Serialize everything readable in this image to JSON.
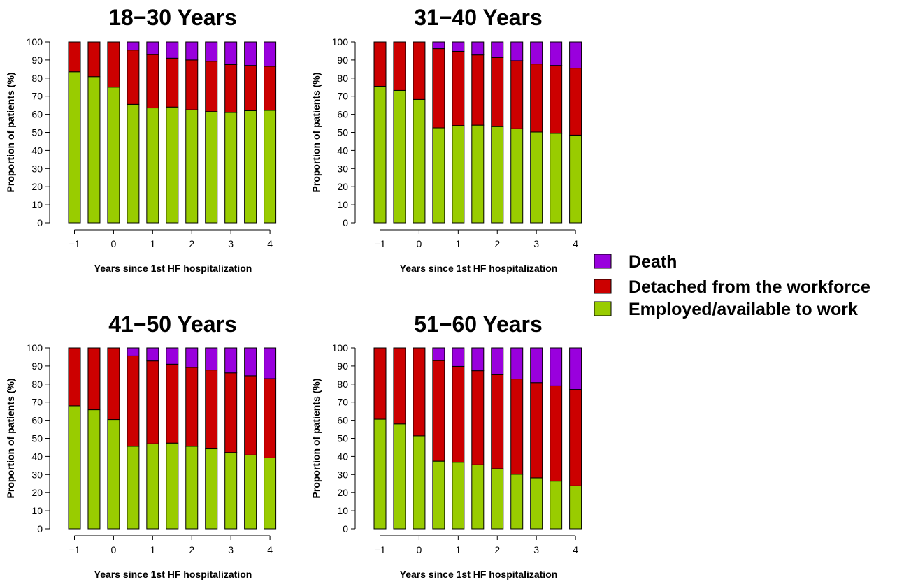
{
  "colors": {
    "death": "#9900dd",
    "detached": "#cc0000",
    "employed": "#99cc00"
  },
  "legend": {
    "items": [
      {
        "label": "Death",
        "color_key": "death"
      },
      {
        "label": "Detached from the workforce",
        "color_key": "detached"
      },
      {
        "label": "Employed/available to work",
        "color_key": "employed"
      }
    ]
  },
  "chart_data": [
    {
      "type": "bar",
      "stacked": true,
      "title": "18−30 Years",
      "xlabel": "Years since 1st HF hospitalization",
      "ylabel": "Proportion of patients (%)",
      "ylim": [
        0,
        100
      ],
      "yticks": [
        0,
        10,
        20,
        30,
        40,
        50,
        60,
        70,
        80,
        90,
        100
      ],
      "categories": [
        -1,
        -0.5,
        0,
        0.5,
        1,
        1.5,
        2,
        2.5,
        3,
        3.5,
        4
      ],
      "xtick_labels": [
        "−1",
        "0",
        "1",
        "2",
        "3",
        "4"
      ],
      "xtick_values": [
        -1,
        0,
        1,
        2,
        3,
        4
      ],
      "grid": false,
      "legend_position": "right",
      "series": [
        {
          "name": "Employed/available to work",
          "values": [
            83.5,
            80.8,
            75,
            65.5,
            63.5,
            64,
            62.5,
            61.5,
            61,
            62,
            62.2
          ]
        },
        {
          "name": "Detached from the workforce",
          "values": [
            16.5,
            19.2,
            25,
            30,
            29.5,
            27,
            27.5,
            27.8,
            26.5,
            25,
            24.3
          ]
        },
        {
          "name": "Death",
          "values": [
            0,
            0,
            0,
            4.5,
            7,
            9,
            10,
            10.7,
            12.5,
            13,
            13.5
          ]
        }
      ]
    },
    {
      "type": "bar",
      "stacked": true,
      "title": "31−40 Years",
      "xlabel": "Years since 1st HF hospitalization",
      "ylabel": "Proportion of patients (%)",
      "ylim": [
        0,
        100
      ],
      "yticks": [
        0,
        10,
        20,
        30,
        40,
        50,
        60,
        70,
        80,
        90,
        100
      ],
      "categories": [
        -1,
        -0.5,
        0,
        0.5,
        1,
        1.5,
        2,
        2.5,
        3,
        3.5,
        4
      ],
      "xtick_labels": [
        "−1",
        "0",
        "1",
        "2",
        "3",
        "4"
      ],
      "xtick_values": [
        -1,
        0,
        1,
        2,
        3,
        4
      ],
      "grid": false,
      "legend_position": "right",
      "series": [
        {
          "name": "Employed/available to work",
          "values": [
            75.5,
            73.2,
            68.2,
            52.5,
            53.8,
            54,
            53.2,
            52,
            50.2,
            49.5,
            48.5
          ]
        },
        {
          "name": "Detached from the workforce",
          "values": [
            24.5,
            26.8,
            31.8,
            43.8,
            41,
            38.8,
            38.2,
            37.6,
            37.6,
            37.5,
            37
          ]
        },
        {
          "name": "Death",
          "values": [
            0,
            0,
            0,
            3.7,
            5.2,
            7.2,
            8.6,
            10.4,
            12.2,
            13,
            14.5
          ]
        }
      ]
    },
    {
      "type": "bar",
      "stacked": true,
      "title": "41−50 Years",
      "xlabel": "Years since 1st HF hospitalization",
      "ylabel": "Proportion of patients (%)",
      "ylim": [
        0,
        100
      ],
      "yticks": [
        0,
        10,
        20,
        30,
        40,
        50,
        60,
        70,
        80,
        90,
        100
      ],
      "categories": [
        -1,
        -0.5,
        0,
        0.5,
        1,
        1.5,
        2,
        2.5,
        3,
        3.5,
        4
      ],
      "xtick_labels": [
        "−1",
        "0",
        "1",
        "2",
        "3",
        "4"
      ],
      "xtick_values": [
        -1,
        0,
        1,
        2,
        3,
        4
      ],
      "grid": false,
      "legend_position": "right",
      "series": [
        {
          "name": "Employed/available to work",
          "values": [
            68,
            65.8,
            60.4,
            45.6,
            47,
            47.4,
            45.6,
            44.2,
            42.2,
            40.8,
            39.2
          ]
        },
        {
          "name": "Detached from the workforce",
          "values": [
            32,
            34.2,
            39.6,
            50,
            45.8,
            43.6,
            43.6,
            43.6,
            44,
            43.8,
            43.8
          ]
        },
        {
          "name": "Death",
          "values": [
            0,
            0,
            0,
            4.4,
            7.2,
            9,
            10.8,
            12.2,
            13.8,
            15.4,
            17
          ]
        }
      ]
    },
    {
      "type": "bar",
      "stacked": true,
      "title": "51−60 Years",
      "xlabel": "Years since 1st HF hospitalization",
      "ylabel": "Proportion of patients (%)",
      "ylim": [
        0,
        100
      ],
      "yticks": [
        0,
        10,
        20,
        30,
        40,
        50,
        60,
        70,
        80,
        90,
        100
      ],
      "categories": [
        -1,
        -0.5,
        0,
        0.5,
        1,
        1.5,
        2,
        2.5,
        3,
        3.5,
        4
      ],
      "xtick_labels": [
        "−1",
        "0",
        "1",
        "2",
        "3",
        "4"
      ],
      "xtick_values": [
        -1,
        0,
        1,
        2,
        3,
        4
      ],
      "grid": false,
      "legend_position": "right",
      "series": [
        {
          "name": "Employed/available to work",
          "values": [
            60.6,
            58,
            51.4,
            37.4,
            36.8,
            35.4,
            33.2,
            30.2,
            28.2,
            26.4,
            23.8
          ]
        },
        {
          "name": "Detached from the workforce",
          "values": [
            39.4,
            42,
            48.6,
            55.6,
            53,
            52,
            52,
            52.6,
            52.6,
            52.6,
            53.2
          ]
        },
        {
          "name": "Death",
          "values": [
            0,
            0,
            0,
            7,
            10.2,
            12.6,
            14.8,
            17.2,
            19.2,
            21,
            23
          ]
        }
      ]
    }
  ]
}
